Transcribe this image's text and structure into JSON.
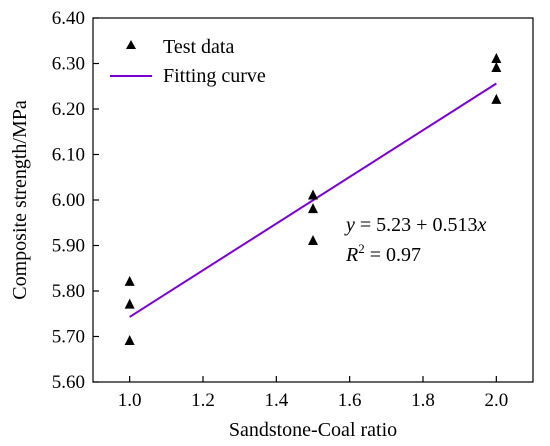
{
  "chart_data": {
    "type": "scatter",
    "xlabel": "Sandstone-Coal ratio",
    "ylabel": "Composite strength/MPa",
    "xlim": [
      0.9,
      2.1
    ],
    "ylim": [
      5.6,
      6.4
    ],
    "x_ticks": [
      "1.0",
      "1.2",
      "1.4",
      "1.6",
      "1.8",
      "2.0"
    ],
    "y_ticks": [
      "5.60",
      "5.70",
      "5.80",
      "5.90",
      "6.00",
      "6.10",
      "6.20",
      "6.30",
      "6.40"
    ],
    "grid": false,
    "legend_position": "top-left",
    "series": [
      {
        "name": "Test data",
        "marker": "triangle",
        "color": "#000000",
        "points": [
          {
            "x": 1.0,
            "y": 5.82
          },
          {
            "x": 1.0,
            "y": 5.77
          },
          {
            "x": 1.0,
            "y": 5.69
          },
          {
            "x": 1.5,
            "y": 6.01
          },
          {
            "x": 1.5,
            "y": 5.98
          },
          {
            "x": 1.5,
            "y": 5.91
          },
          {
            "x": 2.0,
            "y": 6.31
          },
          {
            "x": 2.0,
            "y": 6.29
          },
          {
            "x": 2.0,
            "y": 6.22
          }
        ]
      },
      {
        "name": "Fitting curve",
        "style": "line",
        "color": "#7b00d6",
        "points": [
          {
            "x": 1.0,
            "y": 5.743
          },
          {
            "x": 2.0,
            "y": 6.256
          }
        ]
      }
    ],
    "annotation": {
      "equation": {
        "y": "y",
        "rhs": " = 5.23 + 0.513",
        "x": "x"
      },
      "r2": {
        "R": "R",
        "sup": "2",
        "rhs": " = 0.97"
      }
    }
  }
}
